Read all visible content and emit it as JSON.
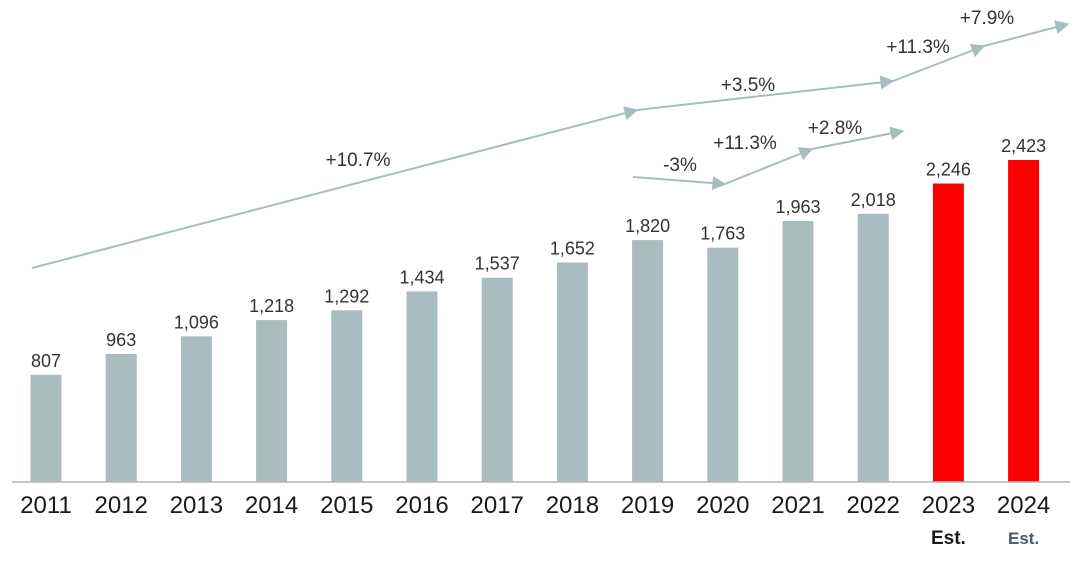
{
  "chart_data": {
    "type": "bar",
    "categories": [
      "2011",
      "2012",
      "2013",
      "2014",
      "2015",
      "2016",
      "2017",
      "2018",
      "2019",
      "2020",
      "2021",
      "2022",
      "2023",
      "2024"
    ],
    "sublabels": [
      "",
      "",
      "",
      "",
      "",
      "",
      "",
      "",
      "",
      "",
      "",
      "",
      "Est.",
      "Est."
    ],
    "values": [
      807,
      963,
      1096,
      1218,
      1292,
      1434,
      1537,
      1652,
      1820,
      1763,
      1963,
      2018,
      2246,
      2423
    ],
    "value_labels": [
      "807",
      "963",
      "1,096",
      "1,218",
      "1,292",
      "1,434",
      "1,537",
      "1,652",
      "1,820",
      "1,763",
      "1,963",
      "2,018",
      "2,246",
      "2,423"
    ],
    "estimated": [
      false,
      false,
      false,
      false,
      false,
      false,
      false,
      false,
      false,
      false,
      false,
      false,
      true,
      true
    ],
    "colors": {
      "actual": "#a9bcc0",
      "estimate": "#ff0000",
      "trend": "#a9bcc0"
    },
    "ylim": [
      0,
      2423
    ],
    "title": "",
    "xlabel": "",
    "ylabel": "",
    "grid": false,
    "legend": "none",
    "annotations": [
      {
        "text": "+10.7%",
        "from": "2011",
        "to": "2019"
      },
      {
        "text": "+3.5%",
        "from": "2019",
        "to": "2022"
      },
      {
        "text": "+11.3%",
        "from": "2022",
        "to": "2023"
      },
      {
        "text": "+7.9%",
        "from": "2023",
        "to": "2024"
      },
      {
        "text": "-3%",
        "from": "2019",
        "to": "2020"
      },
      {
        "text": "+11.3%",
        "from": "2020",
        "to": "2021"
      },
      {
        "text": "+2.8%",
        "from": "2021",
        "to": "2022"
      }
    ]
  }
}
